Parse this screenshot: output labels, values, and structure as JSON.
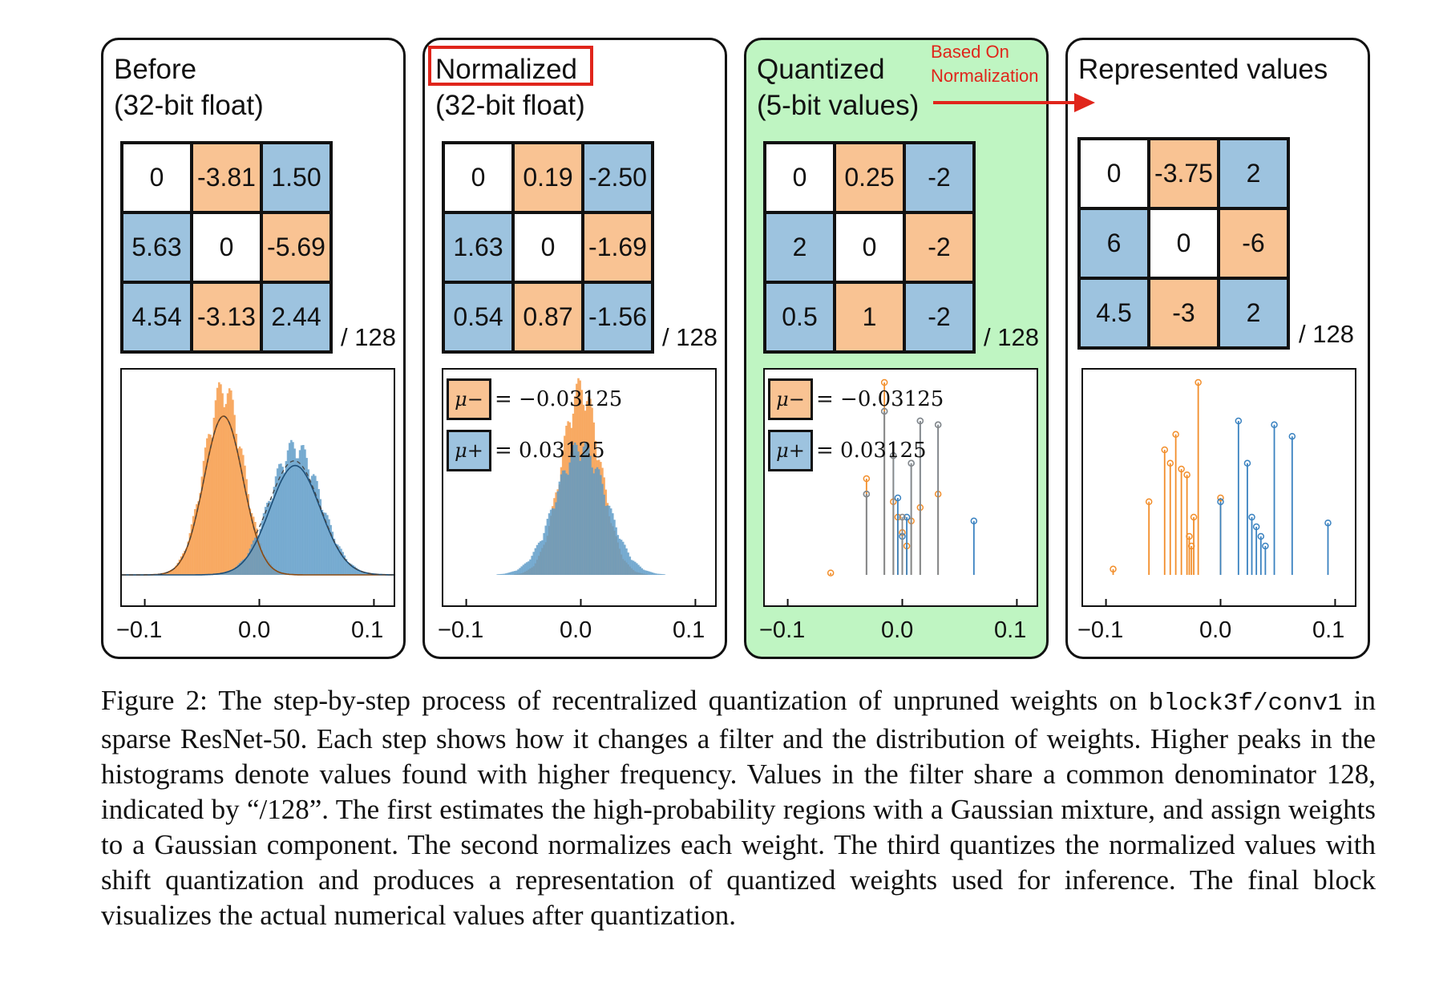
{
  "panels": [
    {
      "title_line1": "Before",
      "title_line2": "(32-bit float)",
      "grid": [
        [
          "0",
          "-3.81",
          "1.50"
        ],
        [
          "5.63",
          "0",
          "-5.69"
        ],
        [
          "4.54",
          "-3.13",
          "2.44"
        ]
      ],
      "denominator": "/ 128",
      "ticks": [
        "−0.1",
        "0.0",
        "0.1"
      ]
    },
    {
      "title_line1": "Normalized",
      "title_line2": "(32-bit float)",
      "grid": [
        [
          "0",
          "0.19",
          "-2.50"
        ],
        [
          "1.63",
          "0",
          "-1.69"
        ],
        [
          "0.54",
          "0.87",
          "-1.56"
        ]
      ],
      "denominator": "/ 128",
      "ticks": [
        "−0.1",
        "0.0",
        "0.1"
      ],
      "legend": [
        {
          "symbol": "μ−",
          "text": "= −0.03125"
        },
        {
          "symbol": "μ+",
          "text": "= 0.03125"
        }
      ]
    },
    {
      "title_line1": "Quantized",
      "title_line2": "(5-bit values)",
      "grid": [
        [
          "0",
          "0.25",
          "-2"
        ],
        [
          "2",
          "0",
          "-2"
        ],
        [
          "0.5",
          "1",
          "-2"
        ]
      ],
      "denominator": "/ 128",
      "ticks": [
        "−0.1",
        "0.0",
        "0.1"
      ],
      "legend": [
        {
          "symbol": "μ−",
          "text": "= −0.03125"
        },
        {
          "symbol": "μ+",
          "text": "= 0.03125"
        }
      ]
    },
    {
      "title_line1": "Represented values",
      "title_line2": "",
      "grid": [
        [
          "0",
          "-3.75",
          "2"
        ],
        [
          "6",
          "0",
          "-6"
        ],
        [
          "4.5",
          "-3",
          "2"
        ]
      ],
      "denominator": "/ 128",
      "ticks": [
        "−0.1",
        "0.0",
        "0.1"
      ]
    }
  ],
  "grid_colors": [
    [
      "white",
      "orange",
      "blue"
    ],
    [
      "blue",
      "white",
      "orange"
    ],
    [
      "blue",
      "orange",
      "blue"
    ]
  ],
  "colors": {
    "orange": "#f9c393",
    "blue": "#9dc3df",
    "hist_orange": "#f79d4c",
    "hist_blue": "#5b9ac7",
    "stem_orange": "#f28e2b",
    "stem_blue": "#3a82c0",
    "stem_gray": "#888888",
    "green_panel": "#bff5c2",
    "annotation_red": "#e0251b"
  },
  "annotation": {
    "line1": "Based On",
    "line2": "Normalization"
  },
  "caption": {
    "prefix": "Figure 2:  The step-by-step process of recentralized quantization of unpruned weights on",
    "code": "block3f/conv1",
    "rest": " in sparse ResNet-50. Each step shows how it changes a filter and the distribution of weights. Higher peaks in the histograms denote values found with higher frequency. Values in the filter share a common denominator 128, indicated by “/128”. The first estimates the high-probability regions with a Gaussian mixture, and assign weights to a Gaussian component. The second normalizes each weight. The third quantizes the normalized values with shift quantization and produces a representation of quantized weights used for inference. The final block visualizes the actual numerical values after quantization."
  },
  "chart_data": [
    {
      "type": "histogram",
      "panel": "Before",
      "xlim": [
        -0.12,
        0.12
      ],
      "xticks": [
        -0.1,
        0.0,
        0.1
      ],
      "series": [
        {
          "color": "orange",
          "mean": -0.03125,
          "std": 0.017
        },
        {
          "color": "blue",
          "mean": 0.03125,
          "std": 0.022
        }
      ]
    },
    {
      "type": "histogram",
      "panel": "Normalized",
      "xlim": [
        -0.12,
        0.12
      ],
      "xticks": [
        -0.1,
        0.0,
        0.1
      ],
      "series": [
        {
          "color": "orange",
          "mean": 0.0,
          "std": 0.017
        },
        {
          "color": "blue",
          "mean": 0.0,
          "std": 0.022
        }
      ]
    },
    {
      "type": "stem",
      "panel": "Quantized",
      "xlim": [
        -0.12,
        0.12
      ],
      "xticks": [
        -0.1,
        0.0,
        0.1
      ],
      "series": [
        {
          "color": "orange",
          "x": [
            -0.0625,
            -0.03125,
            -0.015625,
            -0.0078125,
            -0.00390625,
            0.0,
            0.00390625,
            0.0078125,
            0.015625,
            0.03125
          ],
          "y": [
            0.01,
            0.5,
            1.0,
            0.38,
            0.3,
            0.22,
            0.15,
            0.28,
            0.35,
            0.42
          ]
        },
        {
          "color": "blue",
          "x": [
            -0.03125,
            -0.015625,
            -0.0078125,
            -0.00390625,
            0.0,
            0.00390625,
            0.0078125,
            0.015625,
            0.03125,
            0.0625
          ],
          "y": [
            0.42,
            0.85,
            0.62,
            0.4,
            0.2,
            0.3,
            0.58,
            0.8,
            0.78,
            0.28
          ]
        },
        {
          "color": "gray",
          "x": [
            -0.03125,
            -0.015625,
            -0.0078125,
            0.0,
            0.0078125,
            0.015625,
            0.03125
          ],
          "y": [
            0.42,
            0.85,
            0.62,
            0.3,
            0.58,
            0.8,
            0.78
          ]
        }
      ]
    },
    {
      "type": "stem",
      "panel": "Represented values",
      "xlim": [
        -0.12,
        0.12
      ],
      "xticks": [
        -0.1,
        0.0,
        0.1
      ],
      "series": [
        {
          "color": "orange",
          "x": [
            -0.09375,
            -0.0625,
            -0.0488,
            -0.0439,
            -0.0391,
            -0.0342,
            -0.0293,
            -0.0273,
            -0.0254,
            -0.0234,
            -0.0195,
            0.0
          ],
          "y": [
            0.03,
            0.38,
            0.65,
            0.58,
            0.73,
            0.55,
            0.52,
            0.2,
            0.15,
            0.3,
            1.0,
            0.4
          ]
        },
        {
          "color": "blue",
          "x": [
            0.0,
            0.015625,
            0.0234,
            0.0273,
            0.03125,
            0.0352,
            0.0391,
            0.0469,
            0.0625,
            0.09375
          ],
          "y": [
            0.38,
            0.8,
            0.58,
            0.3,
            0.25,
            0.2,
            0.15,
            0.78,
            0.72,
            0.27
          ]
        }
      ]
    }
  ]
}
